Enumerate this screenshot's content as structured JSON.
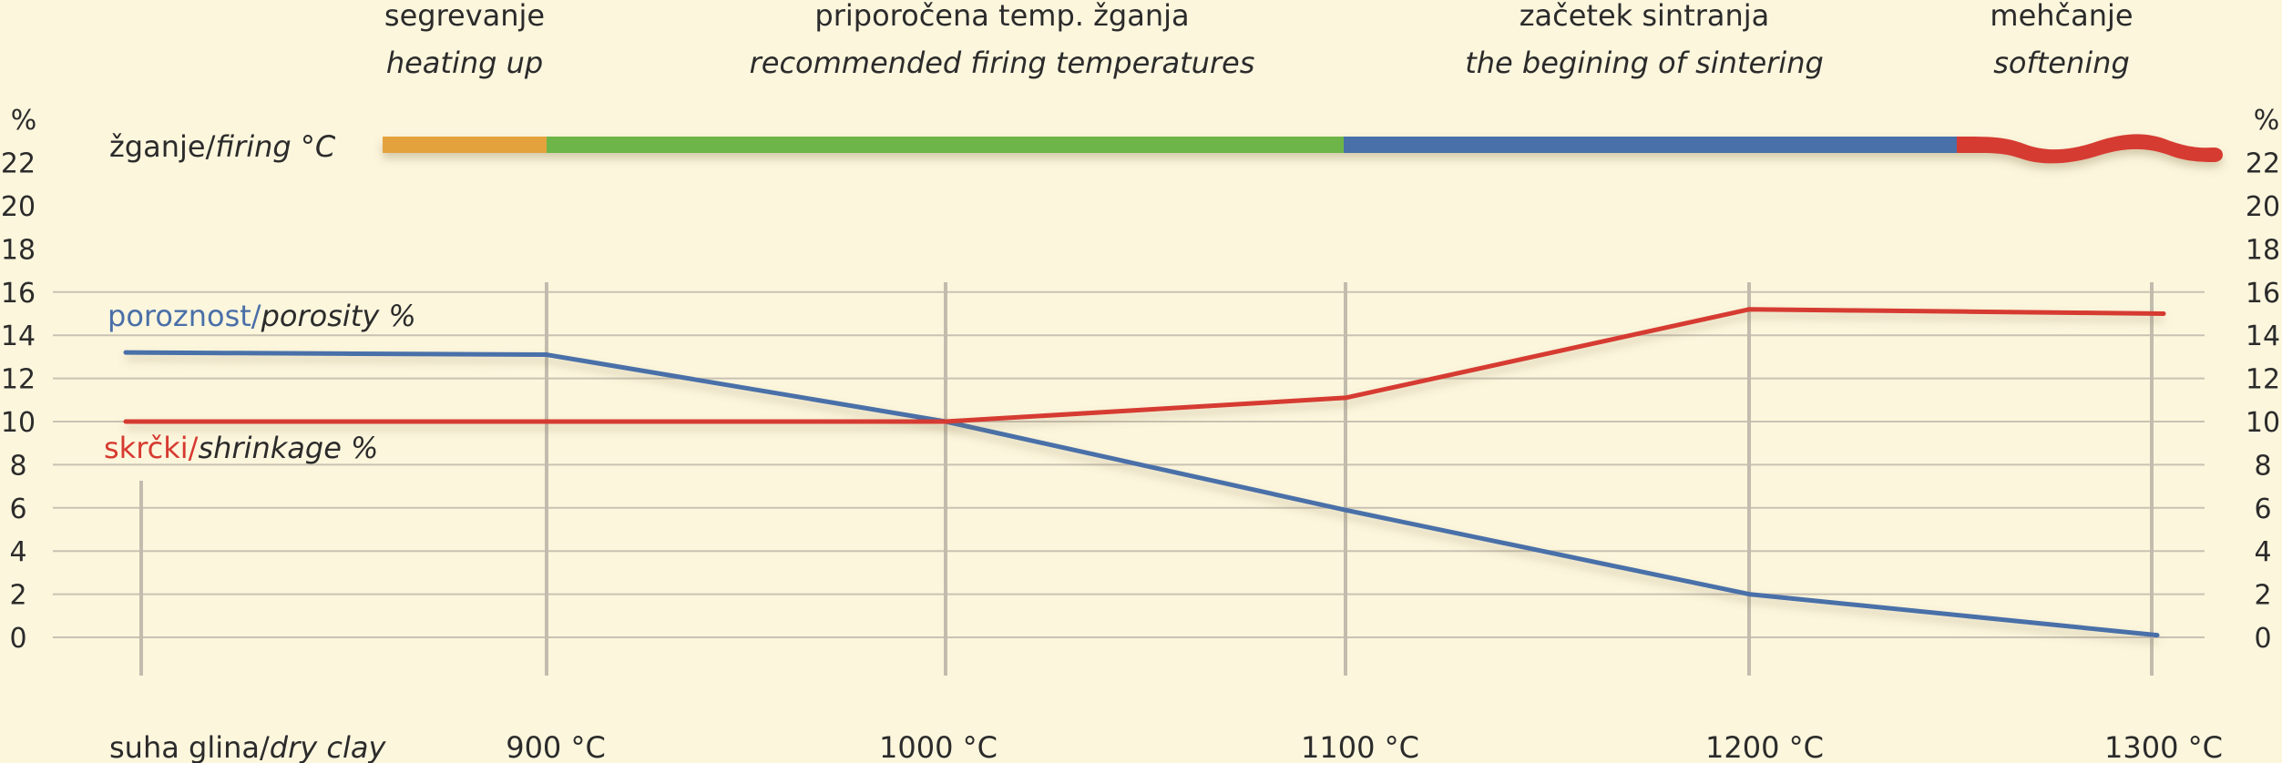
{
  "chart_data": {
    "type": "line",
    "ylim": [
      0,
      22
    ],
    "y_ticks": [
      "0",
      "2",
      "4",
      "6",
      "8",
      "10",
      "12",
      "14",
      "16",
      "18",
      "20",
      "22"
    ],
    "y_unit": "%",
    "categories": [
      "suha glina/dry clay",
      "900 °C",
      "1000 °C",
      "1100 °C",
      "1200 °C",
      "1300 °C"
    ],
    "category_parts": [
      {
        "sl": "suha glina/",
        "en": "dry clay"
      },
      {
        "sl": "900 °C",
        "en": ""
      },
      {
        "sl": "1000 °C",
        "en": ""
      },
      {
        "sl": "1100 °C",
        "en": ""
      },
      {
        "sl": "1200 °C",
        "en": ""
      },
      {
        "sl": "1300 °C",
        "en": ""
      }
    ],
    "grid": true,
    "series": [
      {
        "name": "poroznost/porosity %",
        "name_sl": "poroznost/",
        "name_en": "porosity %",
        "color": "#4a6fa8",
        "values": [
          13.2,
          13.1,
          10.0,
          5.9,
          2.0,
          0.1
        ]
      },
      {
        "name": "skrčki/shrinkage %",
        "name_sl": "skrčki/",
        "name_en": "shrinkage %",
        "color": "#d63a30",
        "values": [
          10.0,
          10.0,
          10.0,
          11.1,
          15.2,
          15.0
        ]
      }
    ],
    "firing_bar": {
      "label_sl": "žganje/",
      "label_en": "firing °C",
      "phases": [
        {
          "sl": "segrevanje",
          "en": "heating up",
          "color": "#e4a23c"
        },
        {
          "sl": "priporočena temp. žganja",
          "en": "recommended firing temperatures",
          "color": "#6db54a"
        },
        {
          "sl": "začetek sintranja",
          "en": "the begining of sintering",
          "color": "#4a6fa8"
        },
        {
          "sl": "mehčanje",
          "en": "softening",
          "color": "#d63a30"
        }
      ]
    }
  }
}
